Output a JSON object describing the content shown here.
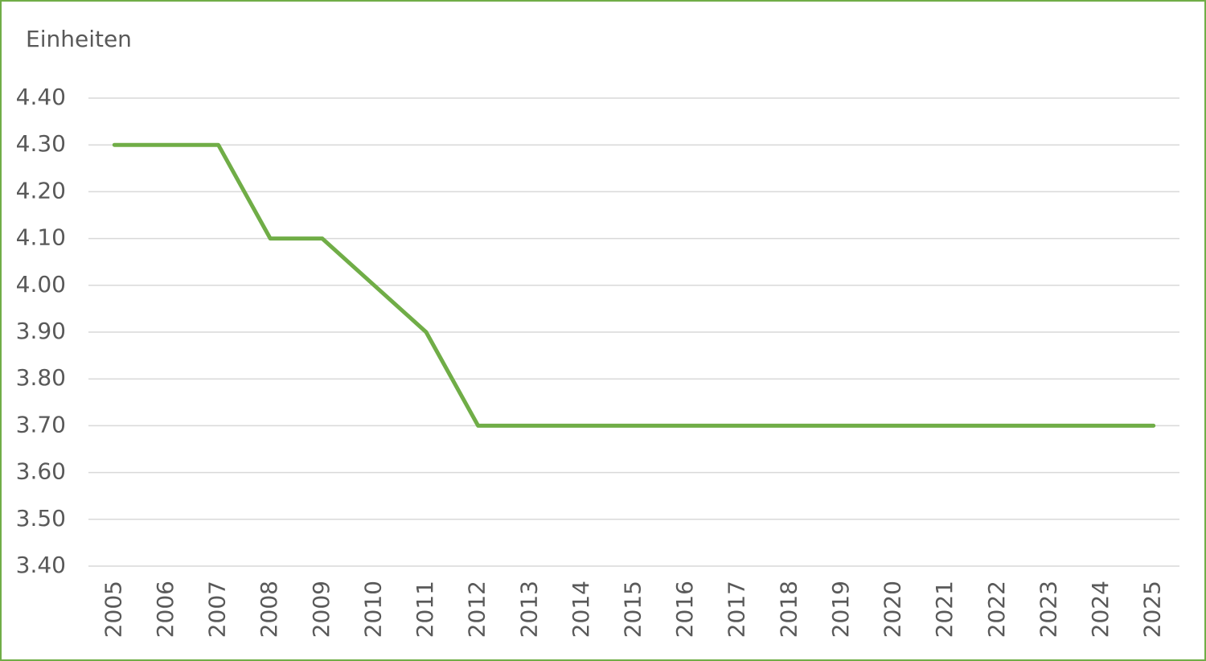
{
  "chart_data": {
    "type": "line",
    "y_axis_label": "Einheiten",
    "categories": [
      "2005",
      "2006",
      "2007",
      "2008",
      "2009",
      "2010",
      "2011",
      "2012",
      "2013",
      "2014",
      "2015",
      "2016",
      "2017",
      "2018",
      "2019",
      "2020",
      "2021",
      "2022",
      "2023",
      "2024",
      "2025"
    ],
    "values": [
      4.3,
      4.3,
      4.3,
      4.1,
      4.1,
      4.0,
      3.9,
      3.7,
      3.7,
      3.7,
      3.7,
      3.7,
      3.7,
      3.7,
      3.7,
      3.7,
      3.7,
      3.7,
      3.7,
      3.7,
      3.7
    ],
    "color": "#70ad47",
    "ylim": [
      3.4,
      4.4
    ],
    "yticks": [
      {
        "value": 3.4,
        "label": "3.40"
      },
      {
        "value": 3.5,
        "label": "3.50"
      },
      {
        "value": 3.6,
        "label": "3.60"
      },
      {
        "value": 3.7,
        "label": "3.70"
      },
      {
        "value": 3.8,
        "label": "3.80"
      },
      {
        "value": 3.9,
        "label": "3.90"
      },
      {
        "value": 4.0,
        "label": "4.00"
      },
      {
        "value": 4.1,
        "label": "4.10"
      },
      {
        "value": 4.2,
        "label": "4.20"
      },
      {
        "value": 4.3,
        "label": "4.30"
      },
      {
        "value": 4.4,
        "label": "4.40"
      }
    ],
    "grid": true
  }
}
